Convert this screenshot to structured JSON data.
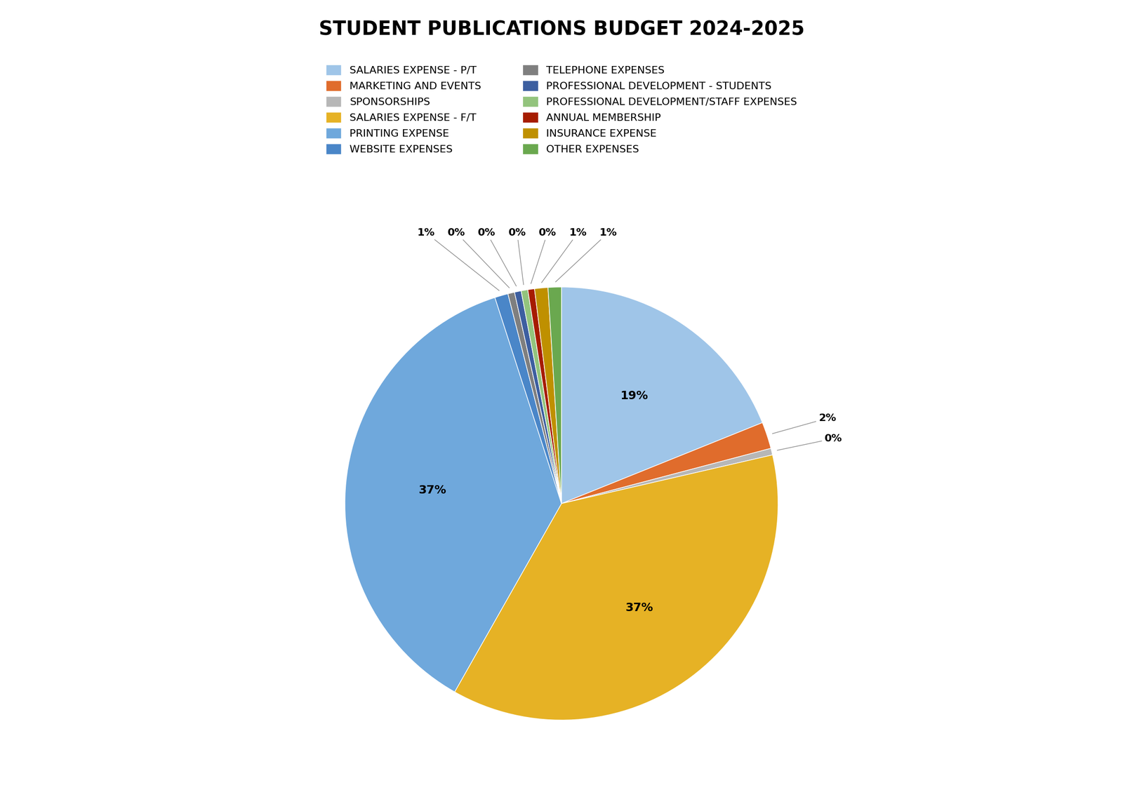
{
  "chart_data": {
    "type": "pie",
    "title": "STUDENT PUBLICATIONS BUDGET 2024-2025",
    "categories": [
      "SALARIES EXPENSE - P/T",
      "MARKETING AND EVENTS",
      "SPONSORSHIPS",
      "SALARIES EXPENSE - F/T",
      "PRINTING EXPENSE",
      "WEBSITE EXPENSES",
      "TELEPHONE EXPENSES",
      "PROFESSIONAL DEVELOPMENT - STUDENTS",
      "PROFESSIONAL DEVELOPMENT/STAFF EXPENSES",
      "ANNUAL MEMBERSHIP",
      "INSURANCE EXPENSE",
      "OTHER EXPENSES"
    ],
    "values": [
      19,
      2,
      0.5,
      37,
      37,
      1,
      0.5,
      0.5,
      0.5,
      0.5,
      1,
      1
    ],
    "value_labels": [
      "19%",
      "2%",
      "0%",
      "37%",
      "37%",
      "1%",
      "0%",
      "0%",
      "0%",
      "0%",
      "1%",
      "1%"
    ],
    "colors": [
      "#9fc5e8",
      "#e06c2c",
      "#b7b7b7",
      "#e6b225",
      "#6fa8dc",
      "#4a86c8",
      "#7f7f7f",
      "#3d5fa0",
      "#93c47d",
      "#a61c00",
      "#bf9000",
      "#6aa84f"
    ],
    "data_labels": true,
    "legend": "upper center"
  }
}
